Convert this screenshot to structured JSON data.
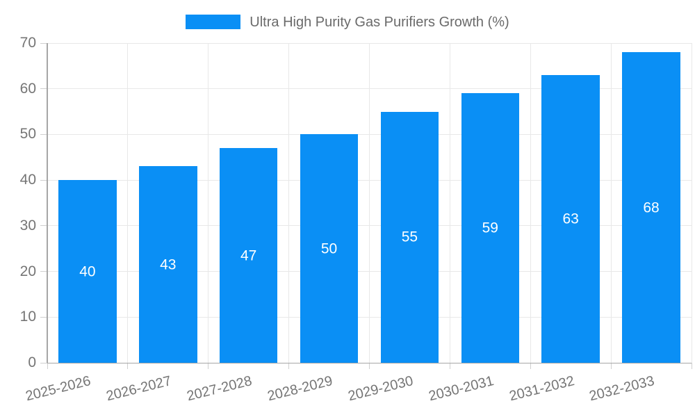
{
  "chart_data": {
    "type": "bar",
    "title": "Ultra High Purity Gas Purifiers Growth (%)",
    "legend": {
      "position": "top",
      "label": "Ultra High Purity Gas Purifiers Growth (%)"
    },
    "categories": [
      "2025-2026",
      "2026-2027",
      "2027-2028",
      "2028-2029",
      "2029-2030",
      "2030-2031",
      "2031-2032",
      "2032-2033"
    ],
    "values": [
      40,
      43,
      47,
      50,
      55,
      59,
      63,
      68
    ],
    "xlabel": "",
    "ylabel": "",
    "ylim": [
      0,
      70
    ],
    "yticks": [
      0,
      10,
      20,
      30,
      40,
      50,
      60,
      70
    ],
    "grid": true,
    "x_label_rotation_deg": -14,
    "colors": {
      "bar": "#0a8ff5",
      "value_label": "#ffffff",
      "gridline": "#e8e8e8",
      "tick": "#cfcfcf",
      "axis": "#a6a6a6",
      "axis_label": "#757575",
      "legend_text": "#6a6a6a"
    }
  }
}
